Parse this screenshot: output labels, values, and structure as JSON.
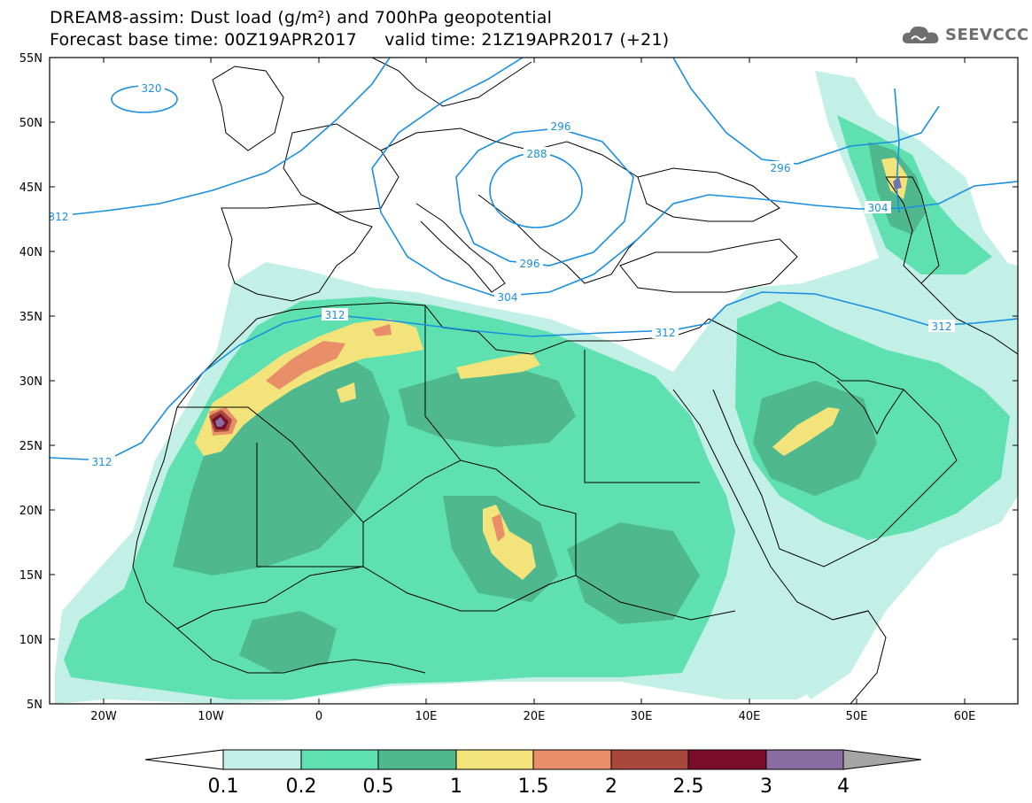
{
  "title": {
    "line1": "DREAM8-assim: Dust load (g/m²) and 700hPa geopotential",
    "line2": "Forecast base time: 00Z19APR2017     valid time: 21Z19APR2017 (+21)"
  },
  "logo": {
    "text": "SEEVCCC",
    "icon": "cloud-icon"
  },
  "map": {
    "lat_ticks": [
      "55N",
      "50N",
      "45N",
      "40N",
      "35N",
      "30N",
      "25N",
      "20N",
      "15N",
      "10N",
      "5N"
    ],
    "lon_ticks": [
      "20W",
      "10W",
      "0",
      "10E",
      "20E",
      "30E",
      "40E",
      "50E",
      "60E"
    ],
    "lon_range": [
      -25,
      65
    ],
    "lat_range": [
      5,
      55
    ],
    "contour_color": "#1a8fe0",
    "contour_labels": [
      "320",
      "312",
      "296",
      "288",
      "296",
      "296",
      "304",
      "304",
      "312",
      "312",
      "312",
      "312"
    ]
  },
  "colorbar": {
    "labels": [
      "0.1",
      "0.2",
      "0.5",
      "1",
      "1.5",
      "2",
      "2.5",
      "3",
      "4"
    ],
    "colors": [
      "#c2f0e6",
      "#5fe0b0",
      "#4fb88e",
      "#f2e47a",
      "#e88f6a",
      "#a8473c",
      "#7a0e2a",
      "#8a6da0"
    ],
    "under_color": "#ffffff",
    "over_color": "#a5a5a5"
  }
}
